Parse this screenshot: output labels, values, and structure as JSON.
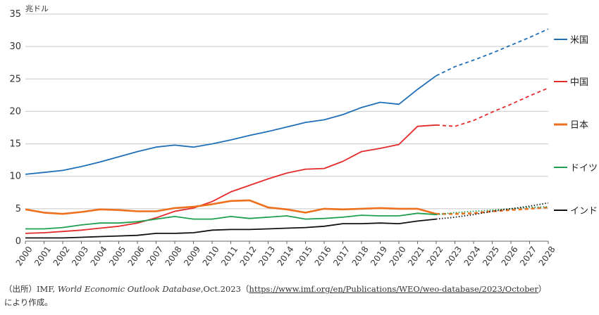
{
  "chart_data": {
    "type": "line",
    "unit_label": "兆ドル",
    "ylim": [
      0,
      35
    ],
    "yticks": [
      0,
      5,
      10,
      15,
      20,
      25,
      30,
      35
    ],
    "x": [
      2000,
      2001,
      2002,
      2003,
      2004,
      2005,
      2006,
      2007,
      2008,
      2009,
      2010,
      2011,
      2012,
      2013,
      2014,
      2015,
      2016,
      2017,
      2018,
      2019,
      2020,
      2021,
      2022,
      2023,
      2024,
      2025,
      2026,
      2027,
      2028
    ],
    "x_labels": [
      "2000",
      "2001",
      "2002",
      "2003",
      "2004",
      "2005",
      "2006",
      "2007",
      "2008",
      "2009",
      "2010",
      "2011",
      "2012",
      "2013",
      "2014",
      "2015",
      "2016",
      "2017",
      "2018",
      "2019",
      "2020",
      "2021",
      "2022",
      "2023",
      "2024",
      "2025",
      "2026",
      "2027",
      "2028"
    ],
    "forecast_from": 2022,
    "grid": "horizontal",
    "legend": "right",
    "series": [
      {
        "name": "米国",
        "color": "#1f6fb8",
        "forecast_style": "dashed",
        "values": [
          10.3,
          10.6,
          10.9,
          11.5,
          12.2,
          13.0,
          13.8,
          14.5,
          14.8,
          14.5,
          15.0,
          15.6,
          16.3,
          16.9,
          17.6,
          18.3,
          18.7,
          19.5,
          20.6,
          21.4,
          21.1,
          23.4,
          25.5,
          26.9,
          27.9,
          29.0,
          30.2,
          31.4,
          32.7
        ]
      },
      {
        "name": "中国",
        "color": "#e32b2b",
        "forecast_style": "dashed",
        "values": [
          1.2,
          1.3,
          1.5,
          1.7,
          2.0,
          2.3,
          2.8,
          3.6,
          4.6,
          5.1,
          6.1,
          7.6,
          8.6,
          9.6,
          10.5,
          11.1,
          11.2,
          12.3,
          13.8,
          14.3,
          14.9,
          17.7,
          17.9,
          17.7,
          18.6,
          19.9,
          21.1,
          22.4,
          23.6
        ]
      },
      {
        "name": "日本",
        "color": "#ee6f1c",
        "forecast_style": "dashed",
        "values": [
          4.9,
          4.4,
          4.2,
          4.5,
          4.9,
          4.8,
          4.6,
          4.6,
          5.1,
          5.3,
          5.7,
          6.2,
          6.3,
          5.2,
          4.9,
          4.4,
          5.0,
          4.9,
          5.0,
          5.1,
          5.0,
          5.0,
          4.2,
          4.2,
          4.3,
          4.6,
          4.8,
          5.0,
          5.2
        ]
      },
      {
        "name": "ドイツ",
        "color": "#1f9e4f",
        "forecast_style": "dotted",
        "values": [
          1.9,
          1.9,
          2.1,
          2.5,
          2.8,
          2.8,
          3.0,
          3.4,
          3.8,
          3.4,
          3.4,
          3.8,
          3.5,
          3.7,
          3.9,
          3.4,
          3.5,
          3.7,
          4.0,
          3.9,
          3.9,
          4.3,
          4.1,
          4.4,
          4.6,
          4.8,
          5.0,
          5.2,
          5.3
        ]
      },
      {
        "name": "インド",
        "color": "#111111",
        "forecast_style": "dotted",
        "values": [
          0.5,
          0.5,
          0.5,
          0.6,
          0.7,
          0.8,
          0.9,
          1.2,
          1.2,
          1.3,
          1.7,
          1.8,
          1.8,
          1.9,
          2.0,
          2.1,
          2.3,
          2.7,
          2.7,
          2.8,
          2.7,
          3.1,
          3.4,
          3.7,
          4.1,
          4.6,
          5.0,
          5.4,
          5.9
        ]
      }
    ]
  },
  "source": {
    "text": "（出所）IMF, ",
    "italic": "World Economic Outlook Database",
    "rest": ",Oct.2023（",
    "url": "https://www.imf.org/en/Publications/WEO/weo-database/2023/October",
    "close": "）",
    "line2": "により作成。"
  }
}
